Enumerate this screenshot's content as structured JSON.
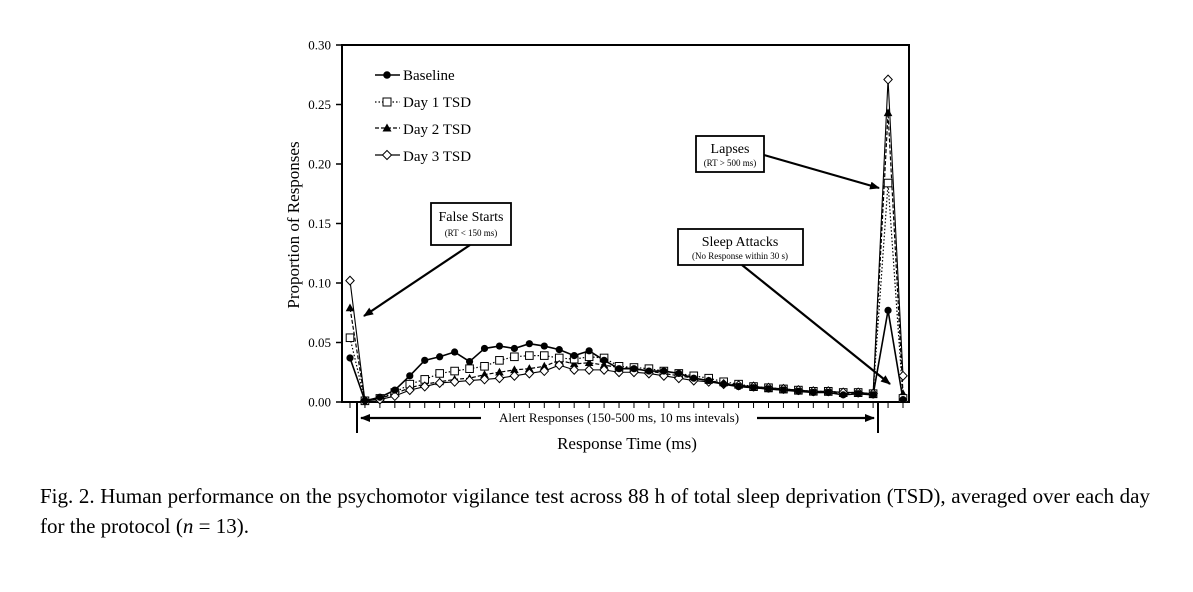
{
  "chart_data": {
    "type": "line",
    "ylabel": "Proportion of Responses",
    "xlabel": "Response Time (ms)",
    "ylim": [
      0,
      0.3
    ],
    "yticks": [
      "0.00",
      "0.05",
      "0.10",
      "0.15",
      "0.20",
      "0.25",
      "0.30"
    ],
    "legend_position": "top-left",
    "bin_count": 38,
    "series": [
      {
        "name": "Baseline",
        "marker": "filled-circle",
        "values": [
          0.037,
          0.001,
          0.004,
          0.01,
          0.022,
          0.035,
          0.038,
          0.042,
          0.034,
          0.045,
          0.047,
          0.045,
          0.049,
          0.047,
          0.044,
          0.039,
          0.043,
          0.035,
          0.028,
          0.028,
          0.026,
          0.026,
          0.024,
          0.02,
          0.018,
          0.015,
          0.013,
          0.012,
          0.011,
          0.01,
          0.009,
          0.008,
          0.008,
          0.006,
          0.007,
          0.006,
          0.077,
          0.002
        ]
      },
      {
        "name": "Day 1 TSD",
        "marker": "open-square",
        "values": [
          0.054,
          0.001,
          0.003,
          0.008,
          0.015,
          0.019,
          0.024,
          0.026,
          0.028,
          0.03,
          0.035,
          0.038,
          0.039,
          0.039,
          0.037,
          0.036,
          0.038,
          0.037,
          0.03,
          0.029,
          0.028,
          0.026,
          0.024,
          0.022,
          0.02,
          0.017,
          0.015,
          0.013,
          0.012,
          0.011,
          0.01,
          0.009,
          0.009,
          0.008,
          0.008,
          0.007,
          0.184,
          0.003
        ]
      },
      {
        "name": "Day 2 TSD",
        "marker": "filled-triangle",
        "values": [
          0.079,
          0.001,
          0.003,
          0.007,
          0.012,
          0.015,
          0.017,
          0.019,
          0.02,
          0.023,
          0.025,
          0.027,
          0.028,
          0.03,
          0.035,
          0.032,
          0.033,
          0.031,
          0.029,
          0.028,
          0.026,
          0.024,
          0.022,
          0.02,
          0.018,
          0.016,
          0.014,
          0.012,
          0.011,
          0.01,
          0.009,
          0.009,
          0.008,
          0.007,
          0.007,
          0.006,
          0.243,
          0.007
        ]
      },
      {
        "name": "Day 3 TSD",
        "marker": "open-diamond",
        "values": [
          0.102,
          0.001,
          0.002,
          0.005,
          0.01,
          0.013,
          0.016,
          0.017,
          0.018,
          0.019,
          0.02,
          0.022,
          0.024,
          0.026,
          0.031,
          0.027,
          0.027,
          0.027,
          0.025,
          0.025,
          0.024,
          0.022,
          0.02,
          0.018,
          0.017,
          0.015,
          0.014,
          0.013,
          0.012,
          0.011,
          0.01,
          0.009,
          0.009,
          0.008,
          0.008,
          0.007,
          0.271,
          0.022
        ]
      }
    ],
    "annotations": {
      "false_starts_title": "False Starts",
      "false_starts_sub": "(RT < 150 ms)",
      "lapses_title": "Lapses",
      "lapses_sub": "(RT > 500 ms)",
      "sleep_attacks_title": "Sleep Attacks",
      "sleep_attacks_sub": "(No Response within 30 s)",
      "alert_responses": "Alert Responses (150-500 ms, 10 ms intevals)"
    }
  },
  "caption": {
    "text_main": "Fig. 2. Human performance on the psychomotor vigilance test across 88 h of total sleep deprivation (TSD), averaged over each day for the protocol (",
    "n_symbol": "n",
    "text_end": " = 13)."
  }
}
